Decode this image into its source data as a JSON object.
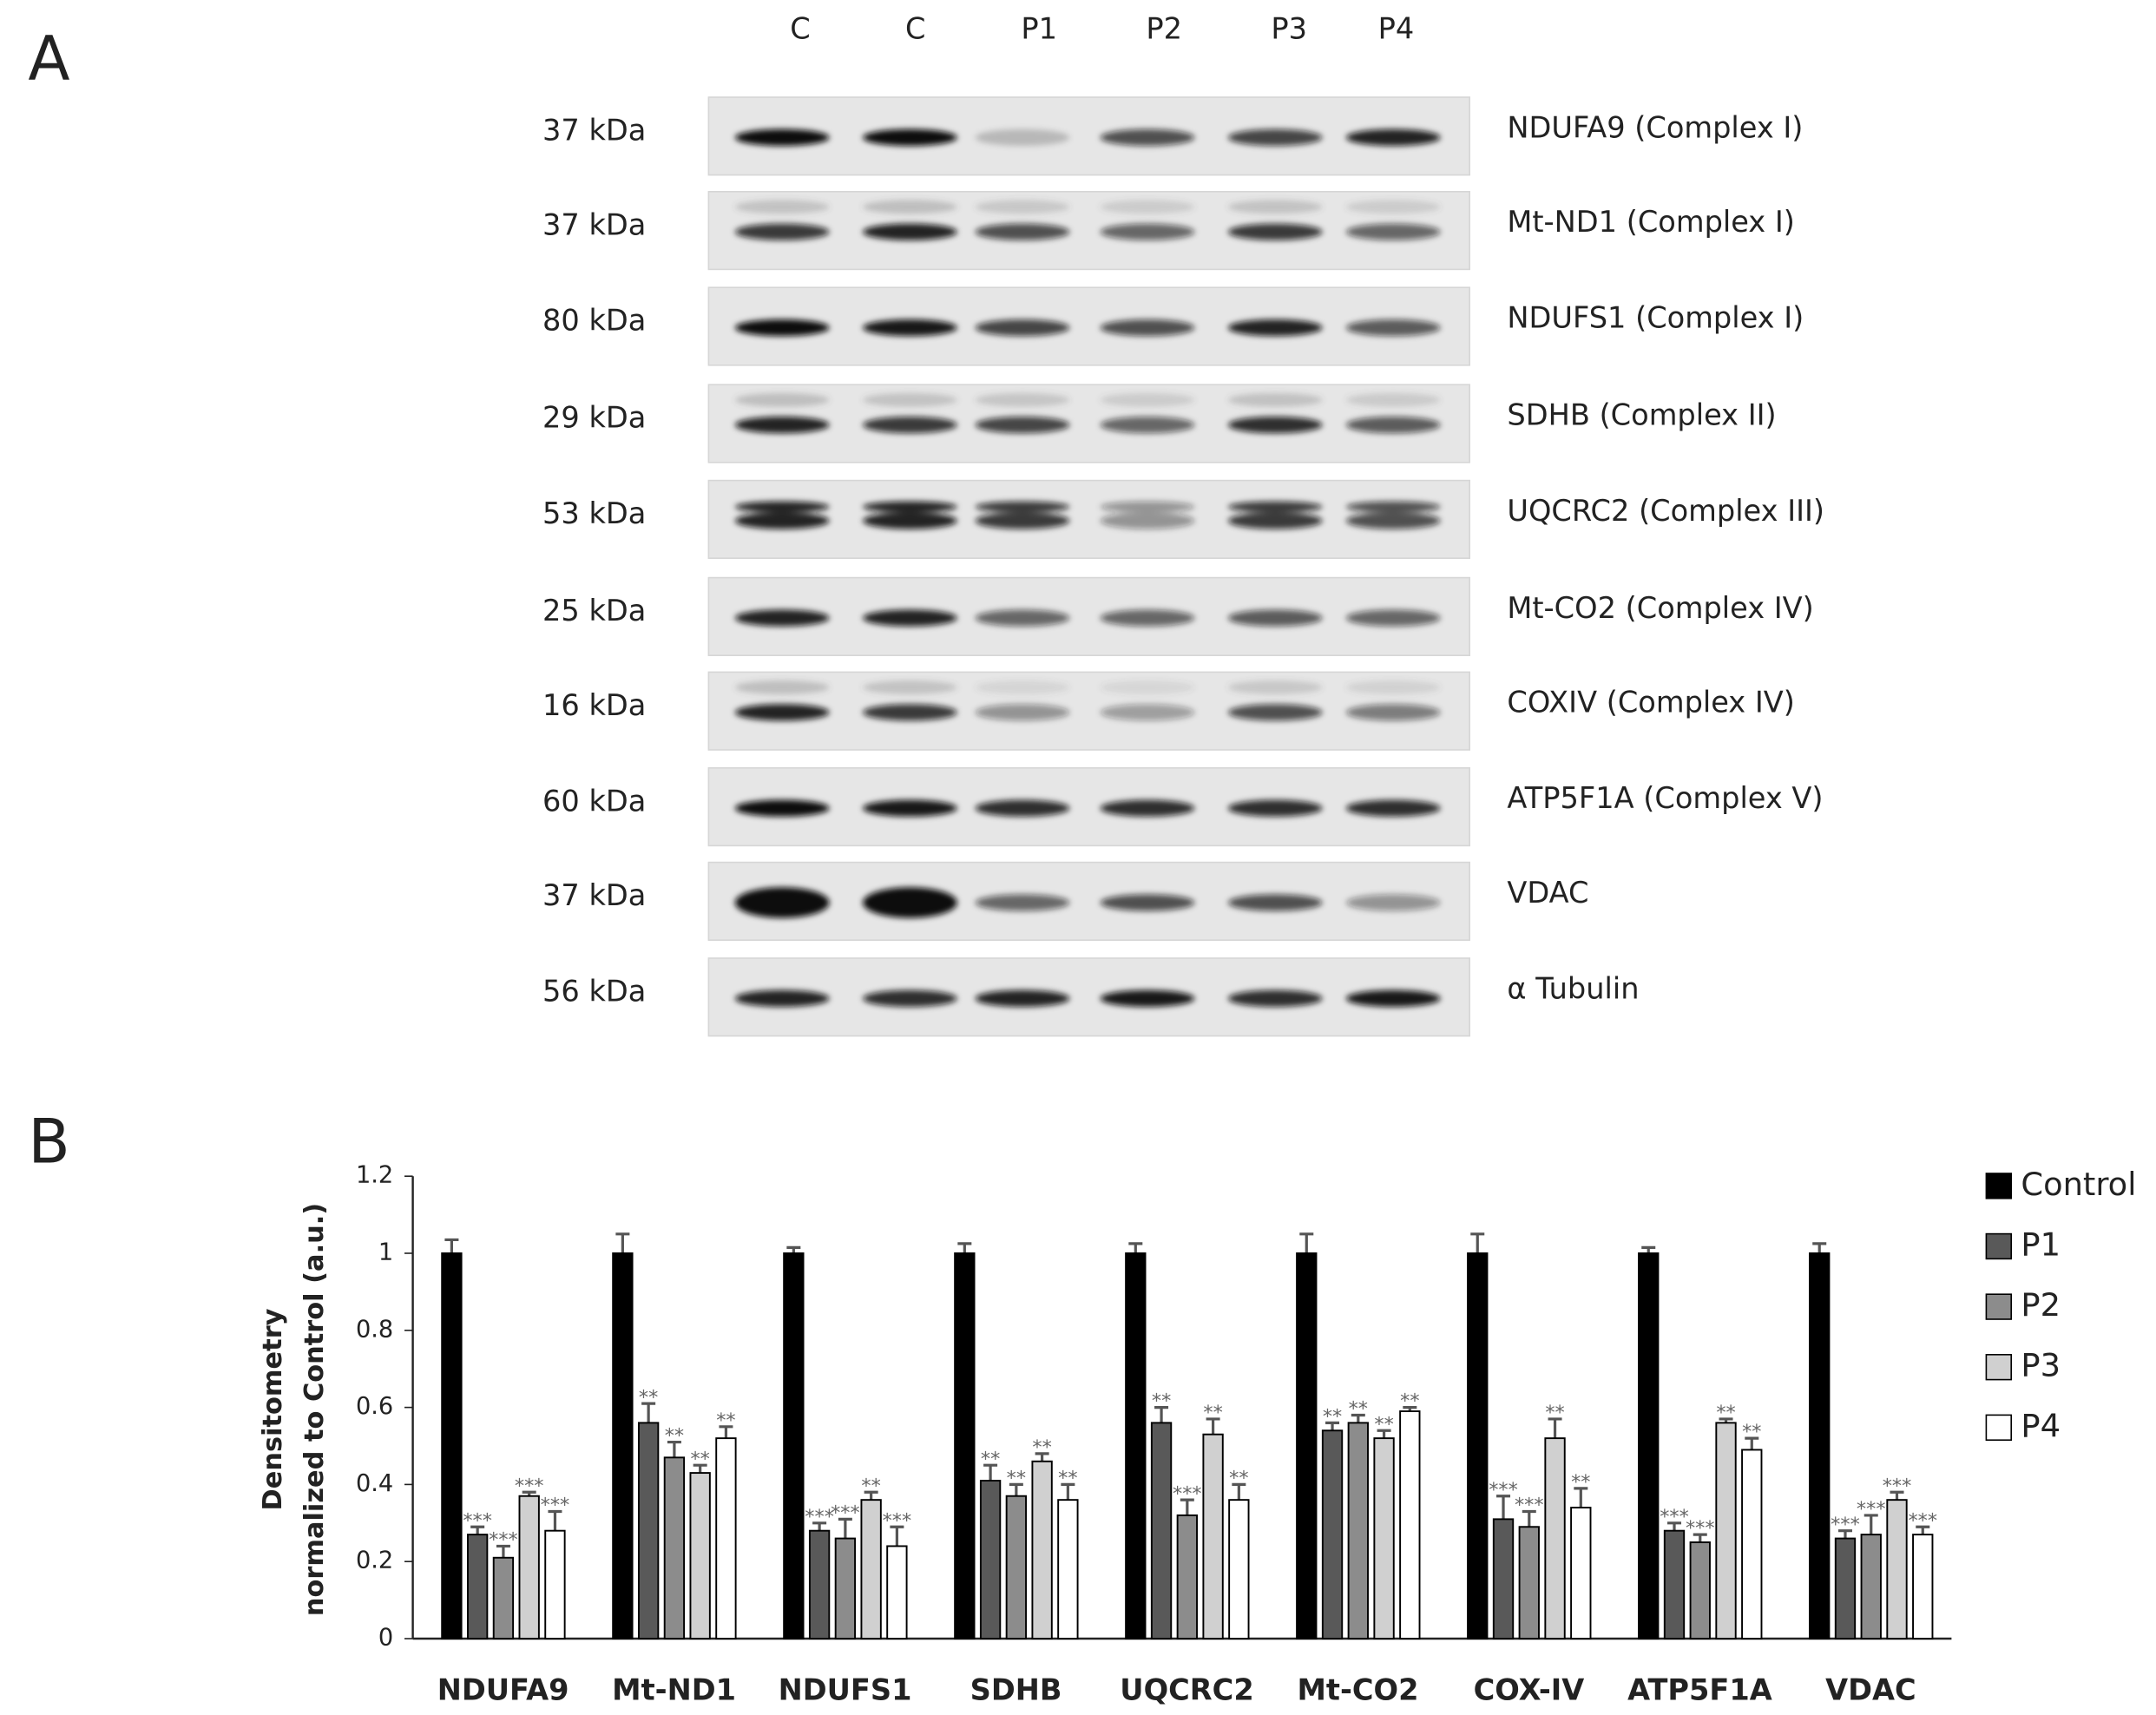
{
  "panel_a": {
    "label": "A",
    "lanes": [
      "C",
      "C",
      "P1",
      "P2",
      "P3",
      "P4"
    ],
    "rows": [
      {
        "size": "37 kDa",
        "protein": "NDUFA9 (Complex I)"
      },
      {
        "size": "37 kDa",
        "protein": "Mt-ND1 (Complex I)"
      },
      {
        "size": "80 kDa",
        "protein": "NDUFS1 (Complex I)"
      },
      {
        "size": "29 kDa",
        "protein": "SDHB (Complex II)"
      },
      {
        "size": "53 kDa",
        "protein": "UQCRC2 (Complex III)"
      },
      {
        "size": "25 kDa",
        "protein": "Mt-CO2 (Complex IV)"
      },
      {
        "size": "16 kDa",
        "protein": "COXIV (Complex IV)"
      },
      {
        "size": "60 kDa",
        "protein": "ATP5F1A (Complex V)"
      },
      {
        "size": "37 kDa",
        "protein": "VDAC"
      },
      {
        "size": "56 kDa",
        "protein": "α Tubulin"
      }
    ]
  },
  "panel_b_label": "B",
  "chart_data": {
    "type": "bar",
    "y_label": [
      "Densitometry",
      "normalized to Control (a.u.)"
    ],
    "categories": [
      "NDUFA9",
      "Mt-ND1",
      "NDUFS1",
      "SDHB",
      "UQCRC2",
      "Mt-CO2",
      "COX-IV",
      "ATP5F1A",
      "VDAC"
    ],
    "ylim": [
      0,
      1.2
    ],
    "yticks": [
      0,
      0.2,
      0.4,
      0.6,
      0.8,
      1,
      1.2
    ],
    "legend": "right",
    "series": [
      {
        "name": "Control",
        "color": "#000000",
        "values": [
          1,
          1,
          1,
          1,
          1,
          1,
          1,
          1,
          1
        ],
        "errors": [
          0.035,
          0.05,
          0.015,
          0.025,
          0.025,
          0.05,
          0.05,
          0.015,
          0.025
        ]
      },
      {
        "name": "P1",
        "color": "#595959",
        "values": [
          0.27,
          0.56,
          0.28,
          0.41,
          0.56,
          0.54,
          0.31,
          0.28,
          0.26
        ],
        "errors": [
          0.02,
          0.05,
          0.02,
          0.04,
          0.04,
          0.02,
          0.06,
          0.02,
          0.02
        ],
        "significance": [
          "***",
          "**",
          "***",
          "**",
          "**",
          "**",
          "***",
          "***",
          "***"
        ]
      },
      {
        "name": "P2",
        "color": "#8c8c8c",
        "values": [
          0.21,
          0.47,
          0.26,
          0.37,
          0.32,
          0.56,
          0.29,
          0.25,
          0.27
        ],
        "errors": [
          0.03,
          0.04,
          0.05,
          0.03,
          0.04,
          0.02,
          0.04,
          0.02,
          0.05
        ],
        "significance": [
          "***",
          "**",
          "***",
          "**",
          "***",
          "**",
          "***",
          "***",
          "***"
        ]
      },
      {
        "name": "P3",
        "color": "#d0d0d0",
        "values": [
          0.37,
          0.43,
          0.36,
          0.46,
          0.53,
          0.52,
          0.52,
          0.56,
          0.36
        ],
        "errors": [
          0.01,
          0.02,
          0.02,
          0.02,
          0.04,
          0.02,
          0.05,
          0.01,
          0.02
        ],
        "significance": [
          "***",
          "**",
          "**",
          "**",
          "**",
          "**",
          "**",
          "**",
          "***"
        ]
      },
      {
        "name": "P4",
        "color": "#ffffff",
        "values": [
          0.28,
          0.52,
          0.24,
          0.36,
          0.36,
          0.59,
          0.34,
          0.49,
          0.27
        ],
        "errors": [
          0.05,
          0.03,
          0.05,
          0.04,
          0.04,
          0.01,
          0.05,
          0.03,
          0.02
        ],
        "significance": [
          "***",
          "**",
          "***",
          "**",
          "**",
          "**",
          "**",
          "**",
          "***"
        ]
      }
    ]
  }
}
